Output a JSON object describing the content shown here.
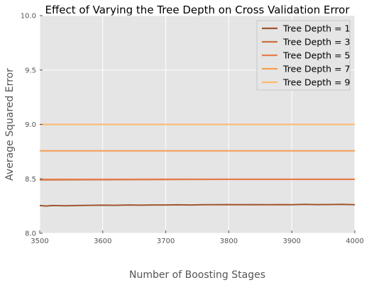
{
  "chart_data": {
    "type": "line",
    "title": "Effect of Varying the Tree Depth on Cross Validation Error",
    "xlabel": "Number of Boosting Stages",
    "ylabel": "Average Squared Error",
    "xlim": [
      3500,
      4000
    ],
    "ylim": [
      8.0,
      10.0
    ],
    "xticks": [
      "3500",
      "3600",
      "3700",
      "3800",
      "3900",
      "4000"
    ],
    "yticks": [
      "8.0",
      "8.5",
      "9.0",
      "9.5",
      "10.0"
    ],
    "grid": true,
    "legend_position": "top-right",
    "background": "#e5e5e5",
    "series": [
      {
        "name": "Tree Depth = 1",
        "color": "#a0572e",
        "x": [
          3500,
          3510,
          3520,
          3540,
          3560,
          3580,
          3600,
          3620,
          3640,
          3660,
          3680,
          3700,
          3720,
          3740,
          3760,
          3780,
          3800,
          3820,
          3840,
          3860,
          3880,
          3900,
          3920,
          3940,
          3960,
          3980,
          4000
        ],
        "y": [
          8.255,
          8.25,
          8.255,
          8.252,
          8.255,
          8.257,
          8.258,
          8.257,
          8.26,
          8.258,
          8.26,
          8.26,
          8.261,
          8.26,
          8.262,
          8.262,
          8.263,
          8.262,
          8.263,
          8.262,
          8.263,
          8.262,
          8.265,
          8.263,
          8.264,
          8.265,
          8.262
        ]
      },
      {
        "name": "Tree Depth = 3",
        "color": "#c96f40",
        "x": [
          3500,
          3600,
          3700,
          3800,
          3900,
          4000
        ],
        "y": [
          8.49,
          8.492,
          8.494,
          8.495,
          8.495,
          8.495
        ]
      },
      {
        "name": "Tree Depth = 5",
        "color": "#e57f4f",
        "x": [
          3500,
          3600,
          3700,
          3800,
          3900,
          4000
        ],
        "y": [
          8.496,
          8.496,
          8.497,
          8.497,
          8.497,
          8.497
        ]
      },
      {
        "name": "Tree Depth = 7",
        "color": "#f59e54",
        "x": [
          3500,
          3600,
          3700,
          3800,
          3900,
          4000
        ],
        "y": [
          8.757,
          8.757,
          8.757,
          8.757,
          8.757,
          8.757
        ]
      },
      {
        "name": "Tree Depth = 9",
        "color": "#fbb870",
        "x": [
          3500,
          3600,
          3700,
          3800,
          3900,
          4000
        ],
        "y": [
          9.0,
          9.0,
          9.0,
          9.0,
          9.0,
          9.0
        ]
      }
    ]
  }
}
